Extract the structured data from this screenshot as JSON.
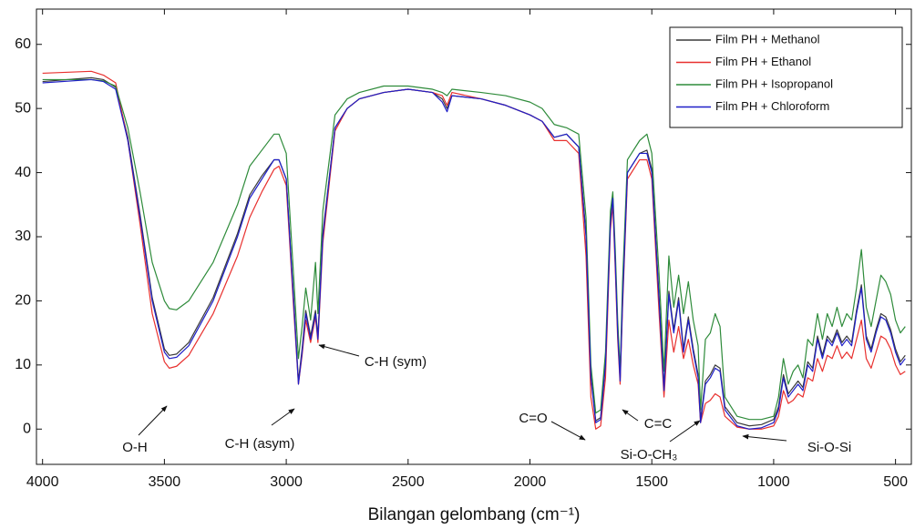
{
  "chart_data": {
    "type": "line",
    "x_label": "Bilangan gelombang (cm⁻¹)",
    "xlim": [
      4025,
      435
    ],
    "ylim": [
      -5.5,
      65.5
    ],
    "xticks": [
      4000,
      3500,
      3000,
      2500,
      2000,
      1500,
      1000,
      500
    ],
    "yticks": [
      0,
      10,
      20,
      30,
      40,
      50,
      60
    ],
    "legend": "upper right",
    "annotations": [
      "O-H",
      "C-H (asym)",
      "C-H (sym)",
      "C=O",
      "C=C",
      "Si-O-CH₃",
      "Si-O-Si"
    ],
    "x": [
      4000,
      3800,
      3750,
      3700,
      3650,
      3600,
      3550,
      3500,
      3480,
      3450,
      3400,
      3300,
      3200,
      3150,
      3100,
      3050,
      3030,
      3000,
      2970,
      2950,
      2935,
      2920,
      2900,
      2880,
      2870,
      2850,
      2800,
      2750,
      2700,
      2600,
      2500,
      2400,
      2360,
      2340,
      2320,
      2200,
      2100,
      2000,
      1950,
      1900,
      1850,
      1800,
      1770,
      1750,
      1730,
      1710,
      1690,
      1670,
      1660,
      1650,
      1640,
      1630,
      1620,
      1600,
      1550,
      1520,
      1500,
      1470,
      1450,
      1430,
      1410,
      1390,
      1370,
      1350,
      1330,
      1310,
      1300,
      1280,
      1260,
      1240,
      1220,
      1200,
      1150,
      1100,
      1050,
      1000,
      980,
      960,
      940,
      920,
      900,
      880,
      860,
      840,
      820,
      800,
      780,
      760,
      740,
      720,
      700,
      680,
      660,
      640,
      620,
      600,
      580,
      560,
      540,
      520,
      500,
      480,
      460
    ],
    "series": [
      {
        "name": "Film PH + Methanol",
        "color": "#3a3a3a",
        "values": [
          54.2,
          54.8,
          54.5,
          53.3,
          45.5,
          33.5,
          20.5,
          12.5,
          11.5,
          11.7,
          13.5,
          20.5,
          30.5,
          36.5,
          39.5,
          42,
          42,
          39,
          20.5,
          7.5,
          12.5,
          18.5,
          14.5,
          18.5,
          14.5,
          30.5,
          47,
          50,
          51.5,
          52.5,
          53,
          52.5,
          51.5,
          50,
          52,
          51.5,
          50.5,
          49,
          48,
          45.5,
          46,
          44,
          30.5,
          8.5,
          1.3,
          1.8,
          10.5,
          32.5,
          36,
          26.5,
          15.5,
          8,
          20.5,
          40,
          43,
          43.5,
          40.5,
          20.5,
          6.5,
          21.5,
          15.5,
          20.5,
          12.5,
          17.5,
          12.5,
          8.5,
          1.5,
          7.5,
          8.5,
          10,
          9.5,
          3.5,
          1,
          0.5,
          0.7,
          1.5,
          3.5,
          8.5,
          5.5,
          6.5,
          7.5,
          6.5,
          10.5,
          9.5,
          14.5,
          11.5,
          14.5,
          13.5,
          15.5,
          13.5,
          14.5,
          13.5,
          18.5,
          22.5,
          14.5,
          12.5,
          15.5,
          18,
          17.5,
          15.5,
          12.5,
          10.5,
          11.5
        ]
      },
      {
        "name": "Film PH + Ethanol",
        "color": "#e8302e",
        "values": [
          55.5,
          55.8,
          55.2,
          54,
          45,
          32,
          18,
          10.5,
          9.5,
          9.8,
          11.5,
          18,
          27,
          33,
          37,
          40.5,
          41,
          38,
          19,
          7,
          11.5,
          17,
          13.5,
          17.5,
          13.5,
          29,
          46.5,
          50,
          51.5,
          52.5,
          53,
          52.5,
          52,
          50.5,
          52.5,
          51.5,
          50.5,
          49,
          48,
          45,
          45,
          43,
          27,
          5,
          0,
          0.5,
          8,
          31,
          35,
          25,
          14,
          7,
          19,
          39,
          42,
          42,
          39,
          18,
          5,
          17,
          12,
          16,
          11,
          14,
          10,
          7,
          1,
          4,
          4.5,
          5.5,
          5,
          2,
          0.3,
          0,
          0,
          0.5,
          2,
          6,
          4,
          4.5,
          5.5,
          5,
          8,
          7.5,
          11,
          9,
          11.5,
          11,
          13,
          11,
          12,
          11,
          14,
          17,
          11,
          9.5,
          12,
          14.5,
          14,
          12.5,
          10,
          8.5,
          9
        ]
      },
      {
        "name": "Film PH + Isopropanol",
        "color": "#2e8b3a",
        "values": [
          54.5,
          54.5,
          54.3,
          53.5,
          47,
          37,
          26,
          20,
          18.8,
          18.6,
          20,
          26,
          35,
          41,
          43.5,
          46,
          46,
          43,
          24,
          11,
          16,
          22,
          17,
          26,
          18,
          34,
          49,
          51.5,
          52.5,
          53.5,
          53.5,
          53,
          52.5,
          52,
          53,
          52.5,
          52,
          51,
          50,
          47.5,
          47,
          46,
          33,
          10,
          2.5,
          3,
          12,
          34,
          37,
          28,
          17,
          9,
          23,
          42,
          45,
          46,
          43,
          24,
          9,
          27,
          19,
          24,
          18,
          23,
          17,
          13,
          3,
          14,
          15,
          18,
          16,
          5,
          2,
          1.5,
          1.5,
          2,
          5,
          11,
          7,
          9,
          10,
          8,
          14,
          13,
          18,
          14,
          18,
          16,
          19,
          16,
          18,
          17,
          22,
          28,
          19,
          16,
          20,
          24,
          23,
          21,
          17,
          15,
          16
        ]
      },
      {
        "name": "Film PH + Chloroform",
        "color": "#1f1fc8",
        "values": [
          54,
          54.5,
          54.2,
          53,
          45,
          33,
          20,
          12,
          11,
          11.2,
          13,
          20,
          30,
          36,
          39,
          42,
          42,
          39,
          20,
          7,
          12,
          18,
          14,
          18,
          14,
          30,
          47,
          50,
          51.5,
          52.5,
          53,
          52.5,
          51,
          49.5,
          52,
          51.5,
          50.5,
          49,
          48,
          45.5,
          46,
          44,
          30,
          8,
          1,
          1.5,
          10,
          32,
          36,
          26,
          15,
          7.5,
          20,
          40,
          43,
          43,
          40,
          20,
          6,
          21,
          15,
          20,
          12,
          17,
          12,
          8,
          1,
          7,
          8,
          9.5,
          9,
          3,
          0.5,
          0,
          0.2,
          1,
          3,
          8,
          5,
          6,
          7,
          6,
          10,
          9,
          14,
          11,
          14,
          13,
          15,
          13,
          14,
          13,
          18,
          22,
          14,
          12,
          15,
          17.5,
          17,
          15,
          12,
          10,
          11
        ]
      }
    ]
  }
}
